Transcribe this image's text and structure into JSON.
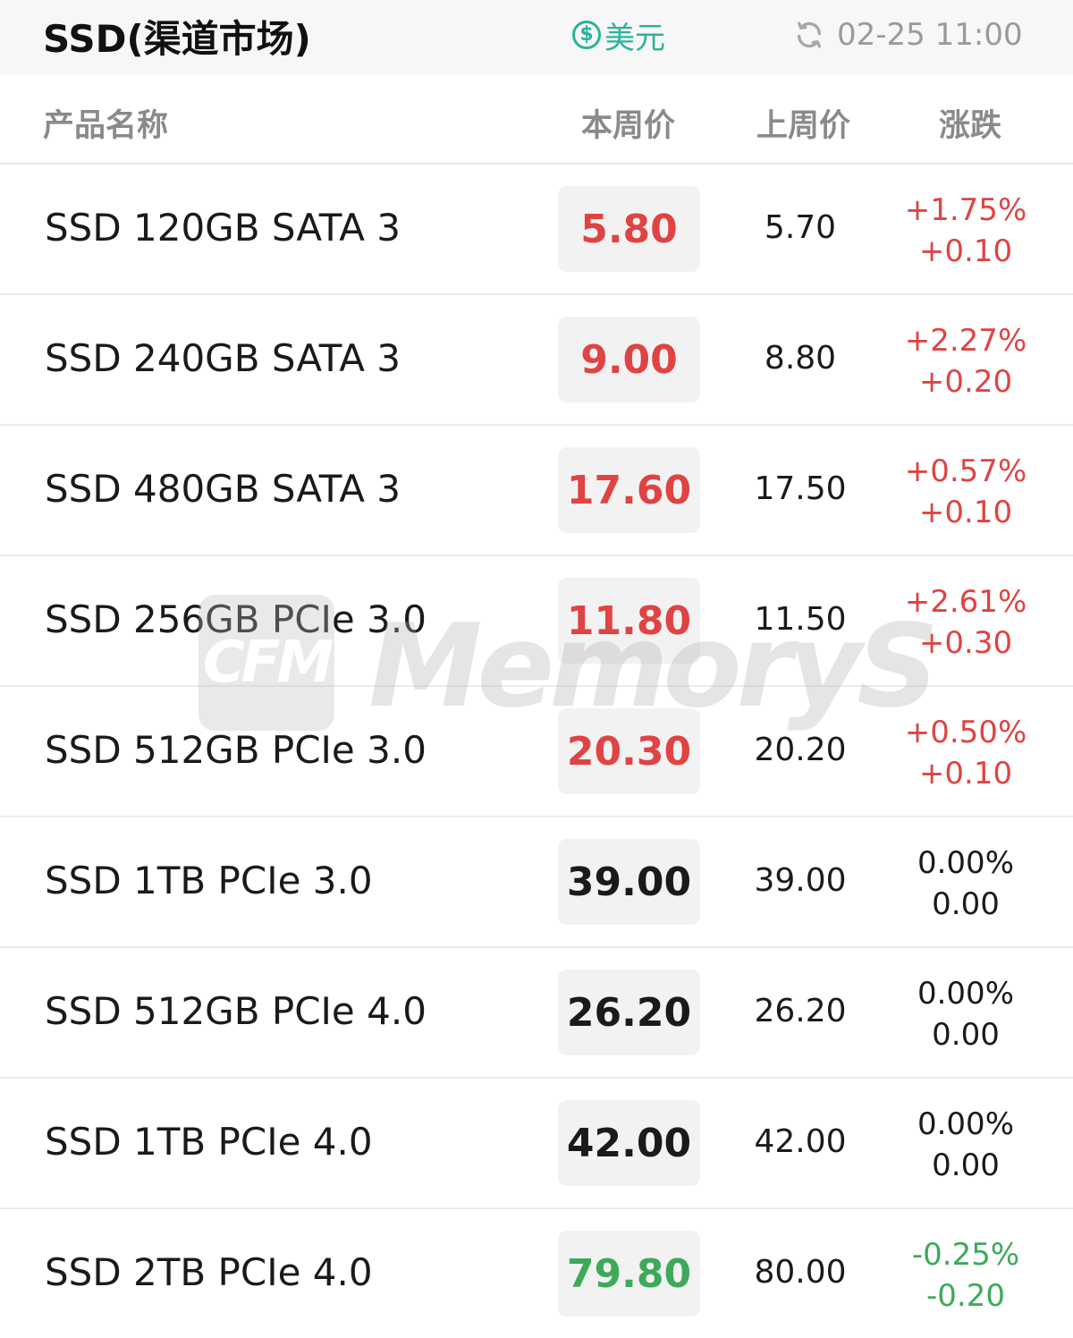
{
  "header": {
    "title": "SSD(渠道市场)",
    "currency_label": "美元",
    "currency_icon": "dollar-circle-icon",
    "refresh_icon": "refresh-icon",
    "timestamp": "02-25 11:00"
  },
  "columns": {
    "name": "产品名称",
    "this_week": "本周价",
    "last_week": "上周价",
    "change": "涨跌"
  },
  "colors": {
    "up": "#e04343",
    "flat": "#1a1a1a",
    "down": "#3daa5a",
    "accent": "#2bb39a"
  },
  "rows": [
    {
      "name": "SSD 120GB SATA 3",
      "this_week": "5.80",
      "last_week": "5.70",
      "pct": "+1.75%",
      "diff": "+0.10",
      "trend": "up"
    },
    {
      "name": "SSD 240GB SATA 3",
      "this_week": "9.00",
      "last_week": "8.80",
      "pct": "+2.27%",
      "diff": "+0.20",
      "trend": "up"
    },
    {
      "name": "SSD 480GB SATA 3",
      "this_week": "17.60",
      "last_week": "17.50",
      "pct": "+0.57%",
      "diff": "+0.10",
      "trend": "up"
    },
    {
      "name": "SSD 256GB PCIe 3.0",
      "this_week": "11.80",
      "last_week": "11.50",
      "pct": "+2.61%",
      "diff": "+0.30",
      "trend": "up"
    },
    {
      "name": "SSD 512GB PCIe 3.0",
      "this_week": "20.30",
      "last_week": "20.20",
      "pct": "+0.50%",
      "diff": "+0.10",
      "trend": "up"
    },
    {
      "name": "SSD 1TB PCIe 3.0",
      "this_week": "39.00",
      "last_week": "39.00",
      "pct": "0.00%",
      "diff": "0.00",
      "trend": "flat"
    },
    {
      "name": "SSD 512GB PCIe 4.0",
      "this_week": "26.20",
      "last_week": "26.20",
      "pct": "0.00%",
      "diff": "0.00",
      "trend": "flat"
    },
    {
      "name": "SSD 1TB PCIe 4.0",
      "this_week": "42.00",
      "last_week": "42.00",
      "pct": "0.00%",
      "diff": "0.00",
      "trend": "flat"
    },
    {
      "name": "SSD 2TB PCIe 4.0",
      "this_week": "79.80",
      "last_week": "80.00",
      "pct": "-0.25%",
      "diff": "-0.20",
      "trend": "down"
    }
  ],
  "watermark": {
    "logo_text": "CFM",
    "brand_text": "MemoryS"
  }
}
